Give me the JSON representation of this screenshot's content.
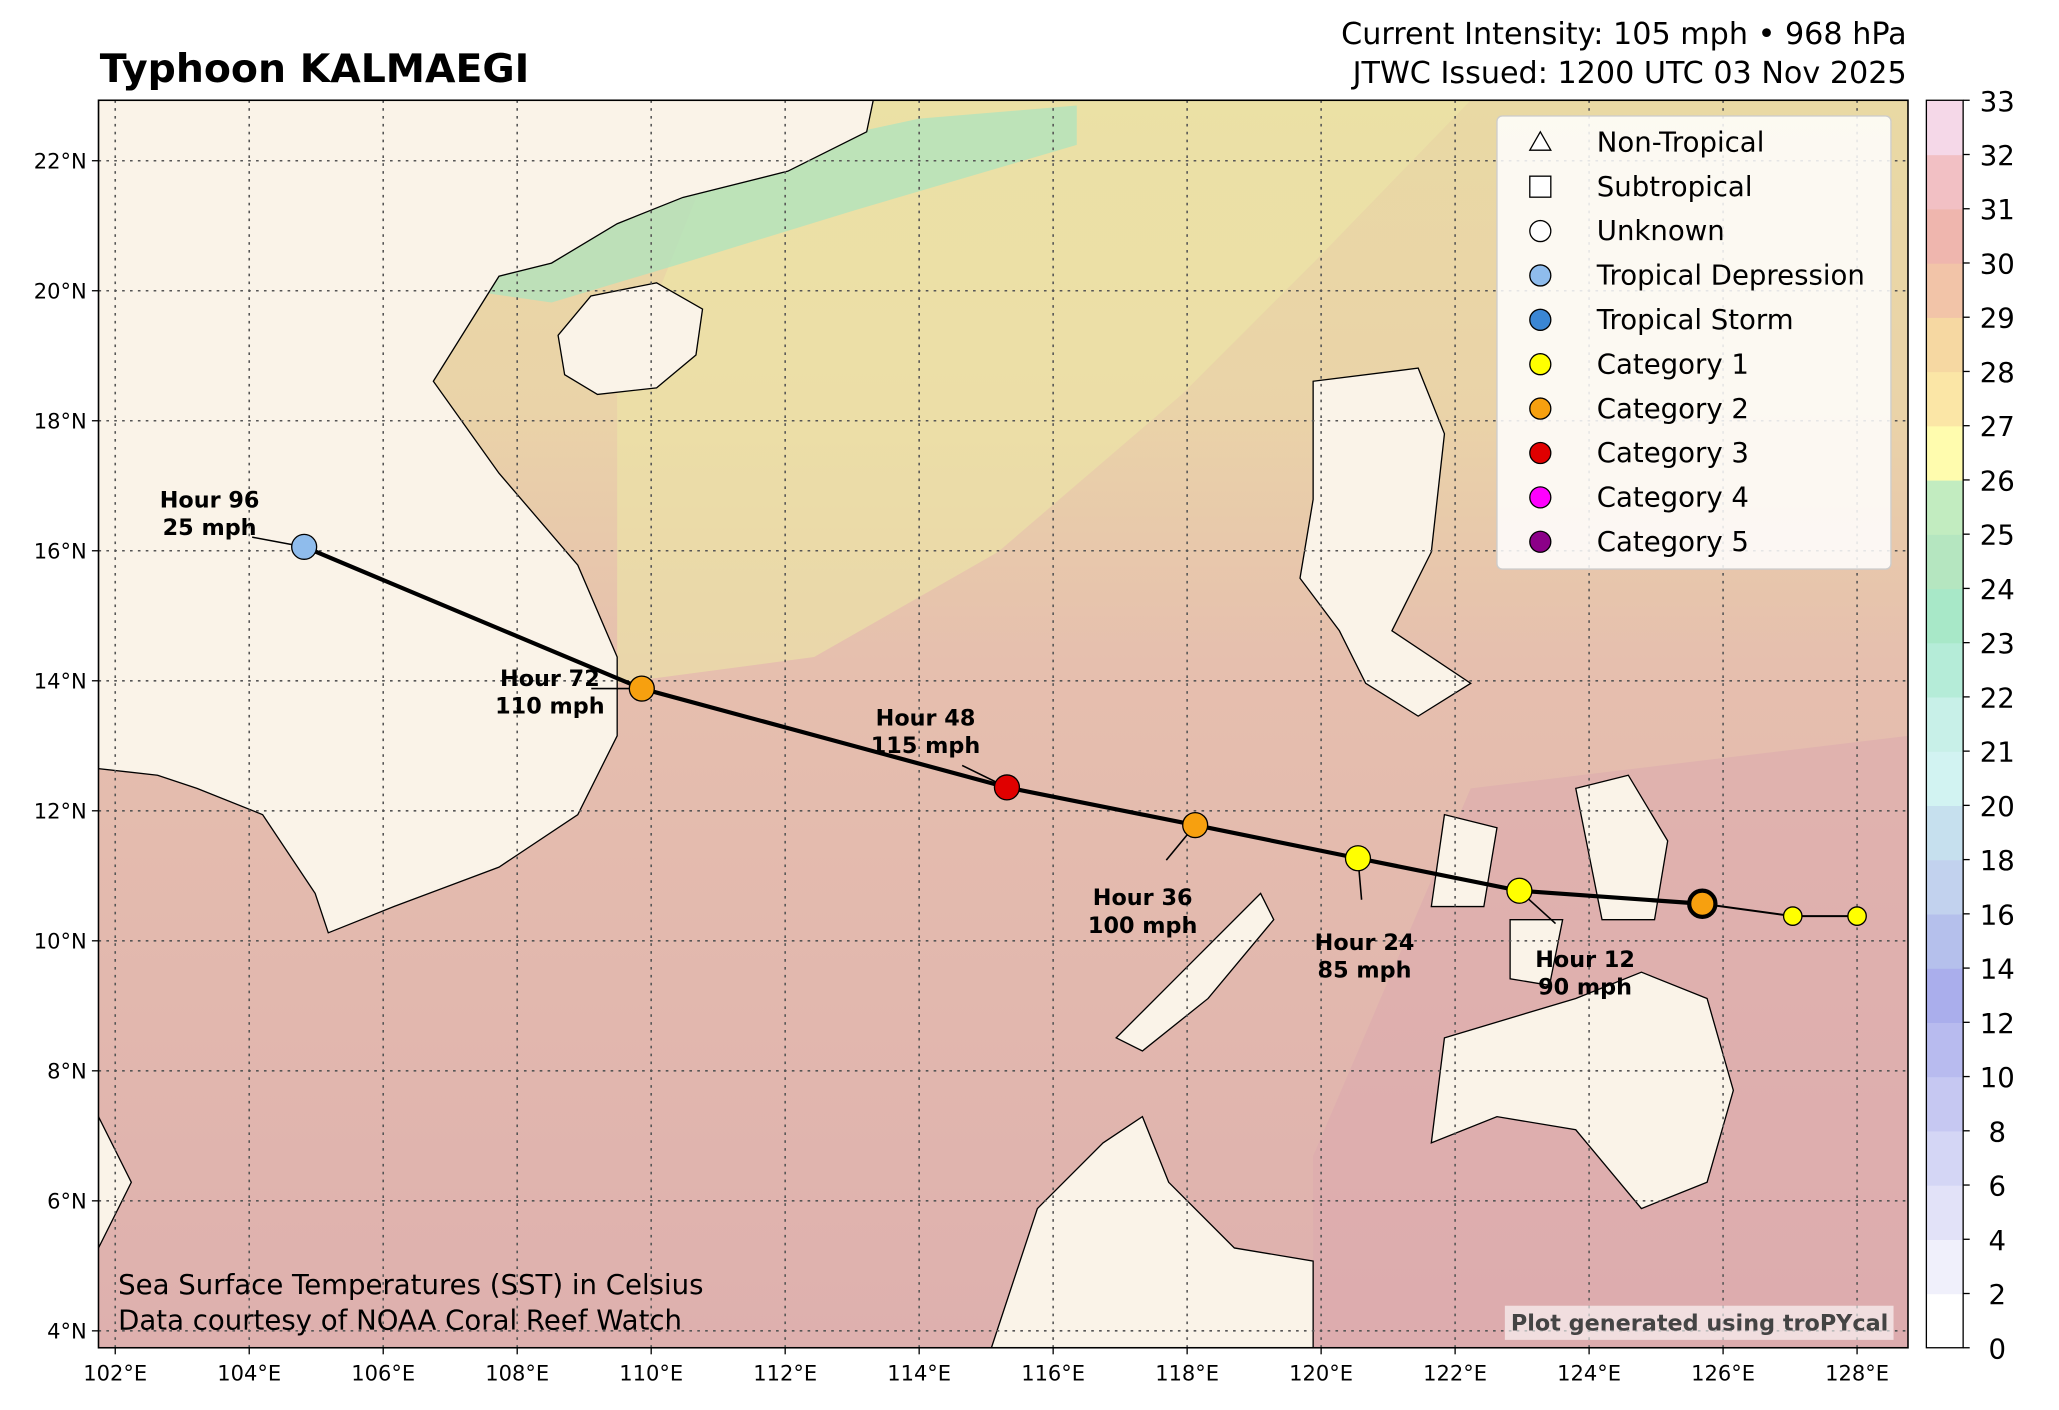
{
  "chart_data": {
    "type": "track-map",
    "title": "Typhoon KALMAEGI",
    "subtitle_lines": [
      "Current Intensity: 105 mph • 968 hPa",
      "JTWC Issued: 1200 UTC 03 Nov 2025"
    ],
    "footnotes": [
      "Sea Surface Temperatures (SST) in Celsius",
      "Data courtesy of NOAA Coral Reef Watch"
    ],
    "credit": "Plot generated using troPYcal",
    "xlim": [
      101.75,
      128.76
    ],
    "ylim": [
      3.74,
      22.93
    ],
    "xticks": [
      {
        "value": 102,
        "label": "102°E"
      },
      {
        "value": 104,
        "label": "104°E"
      },
      {
        "value": 106,
        "label": "106°E"
      },
      {
        "value": 108,
        "label": "108°E"
      },
      {
        "value": 110,
        "label": "110°E"
      },
      {
        "value": 112,
        "label": "112°E"
      },
      {
        "value": 114,
        "label": "114°E"
      },
      {
        "value": 116,
        "label": "116°E"
      },
      {
        "value": 118,
        "label": "118°E"
      },
      {
        "value": 120,
        "label": "120°E"
      },
      {
        "value": 122,
        "label": "122°E"
      },
      {
        "value": 124,
        "label": "124°E"
      },
      {
        "value": 126,
        "label": "126°E"
      },
      {
        "value": 128,
        "label": "128°E"
      }
    ],
    "yticks": [
      {
        "value": 4,
        "label": "4°N"
      },
      {
        "value": 6,
        "label": "6°N"
      },
      {
        "value": 8,
        "label": "8°N"
      },
      {
        "value": 10,
        "label": "10°N"
      },
      {
        "value": 12,
        "label": "12°N"
      },
      {
        "value": 14,
        "label": "14°N"
      },
      {
        "value": 16,
        "label": "16°N"
      },
      {
        "value": 18,
        "label": "18°N"
      },
      {
        "value": 20,
        "label": "20°N"
      },
      {
        "value": 22,
        "label": "22°N"
      }
    ],
    "grid": true,
    "forecast": {
      "lon": [
        125.69,
        122.96,
        120.55,
        118.12,
        115.31,
        109.86,
        104.82
      ],
      "lat": [
        10.57,
        10.77,
        11.27,
        11.78,
        12.36,
        13.88,
        16.06
      ],
      "colors": [
        "#f7a00f",
        "#ffff00",
        "#ffff00",
        "#f7a00f",
        "#e00000",
        "#f7a00f",
        "#8fbcec"
      ],
      "labels": [
        null,
        "Hour 12",
        "Hour 24",
        "Hour 36",
        "Hour 48",
        "Hour 72",
        "Hour 96"
      ],
      "winds": [
        null,
        "90 mph",
        "85 mph",
        "100 mph",
        "115 mph",
        "110 mph",
        "25 mph"
      ]
    },
    "past": {
      "lon": [
        127.04,
        128.0
      ],
      "lat": [
        10.38,
        10.38
      ],
      "colors": [
        "#ffff00",
        "#ffff00"
      ]
    },
    "legend": [
      {
        "name": "Non-Tropical",
        "marker": "triangle",
        "color": "#ffffff"
      },
      {
        "name": "Subtropical",
        "marker": "square",
        "color": "#ffffff"
      },
      {
        "name": "Unknown",
        "marker": "circle",
        "color": "#ffffff"
      },
      {
        "name": "Tropical Depression",
        "marker": "circle",
        "color": "#8fbcec"
      },
      {
        "name": "Tropical Storm",
        "marker": "circle",
        "color": "#3a86d4"
      },
      {
        "name": "Category 1",
        "marker": "circle",
        "color": "#ffff00"
      },
      {
        "name": "Category 2",
        "marker": "circle",
        "color": "#f7a00f"
      },
      {
        "name": "Category 3",
        "marker": "circle",
        "color": "#e00000"
      },
      {
        "name": "Category 4",
        "marker": "circle",
        "color": "#ff00ff"
      },
      {
        "name": "Category 5",
        "marker": "circle",
        "color": "#8b0088"
      }
    ],
    "colorbar": {
      "ticks": [
        0,
        2,
        4,
        6,
        8,
        10,
        12,
        14,
        16,
        18,
        20,
        21,
        22,
        23,
        24,
        25,
        26,
        27,
        28,
        29,
        30,
        31,
        32,
        33
      ],
      "colors": [
        "#ffffff",
        "#f0f0fb",
        "#e2e2f8",
        "#d4d6f5",
        "#c6c8f2",
        "#b8bbef",
        "#aaaeec",
        "#b5c0ec",
        "#c2d2ee",
        "#c6e0ee",
        "#d2f3f2",
        "#c8f0e8",
        "#b5ecd8",
        "#a8e8c8",
        "#b5e6c0",
        "#c2ecc0",
        "#fffcae",
        "#fbe6a6",
        "#f6d8a2",
        "#f2c4a8",
        "#efb6ae",
        "#f2c0c4",
        "#f5d8e8"
      ]
    }
  }
}
